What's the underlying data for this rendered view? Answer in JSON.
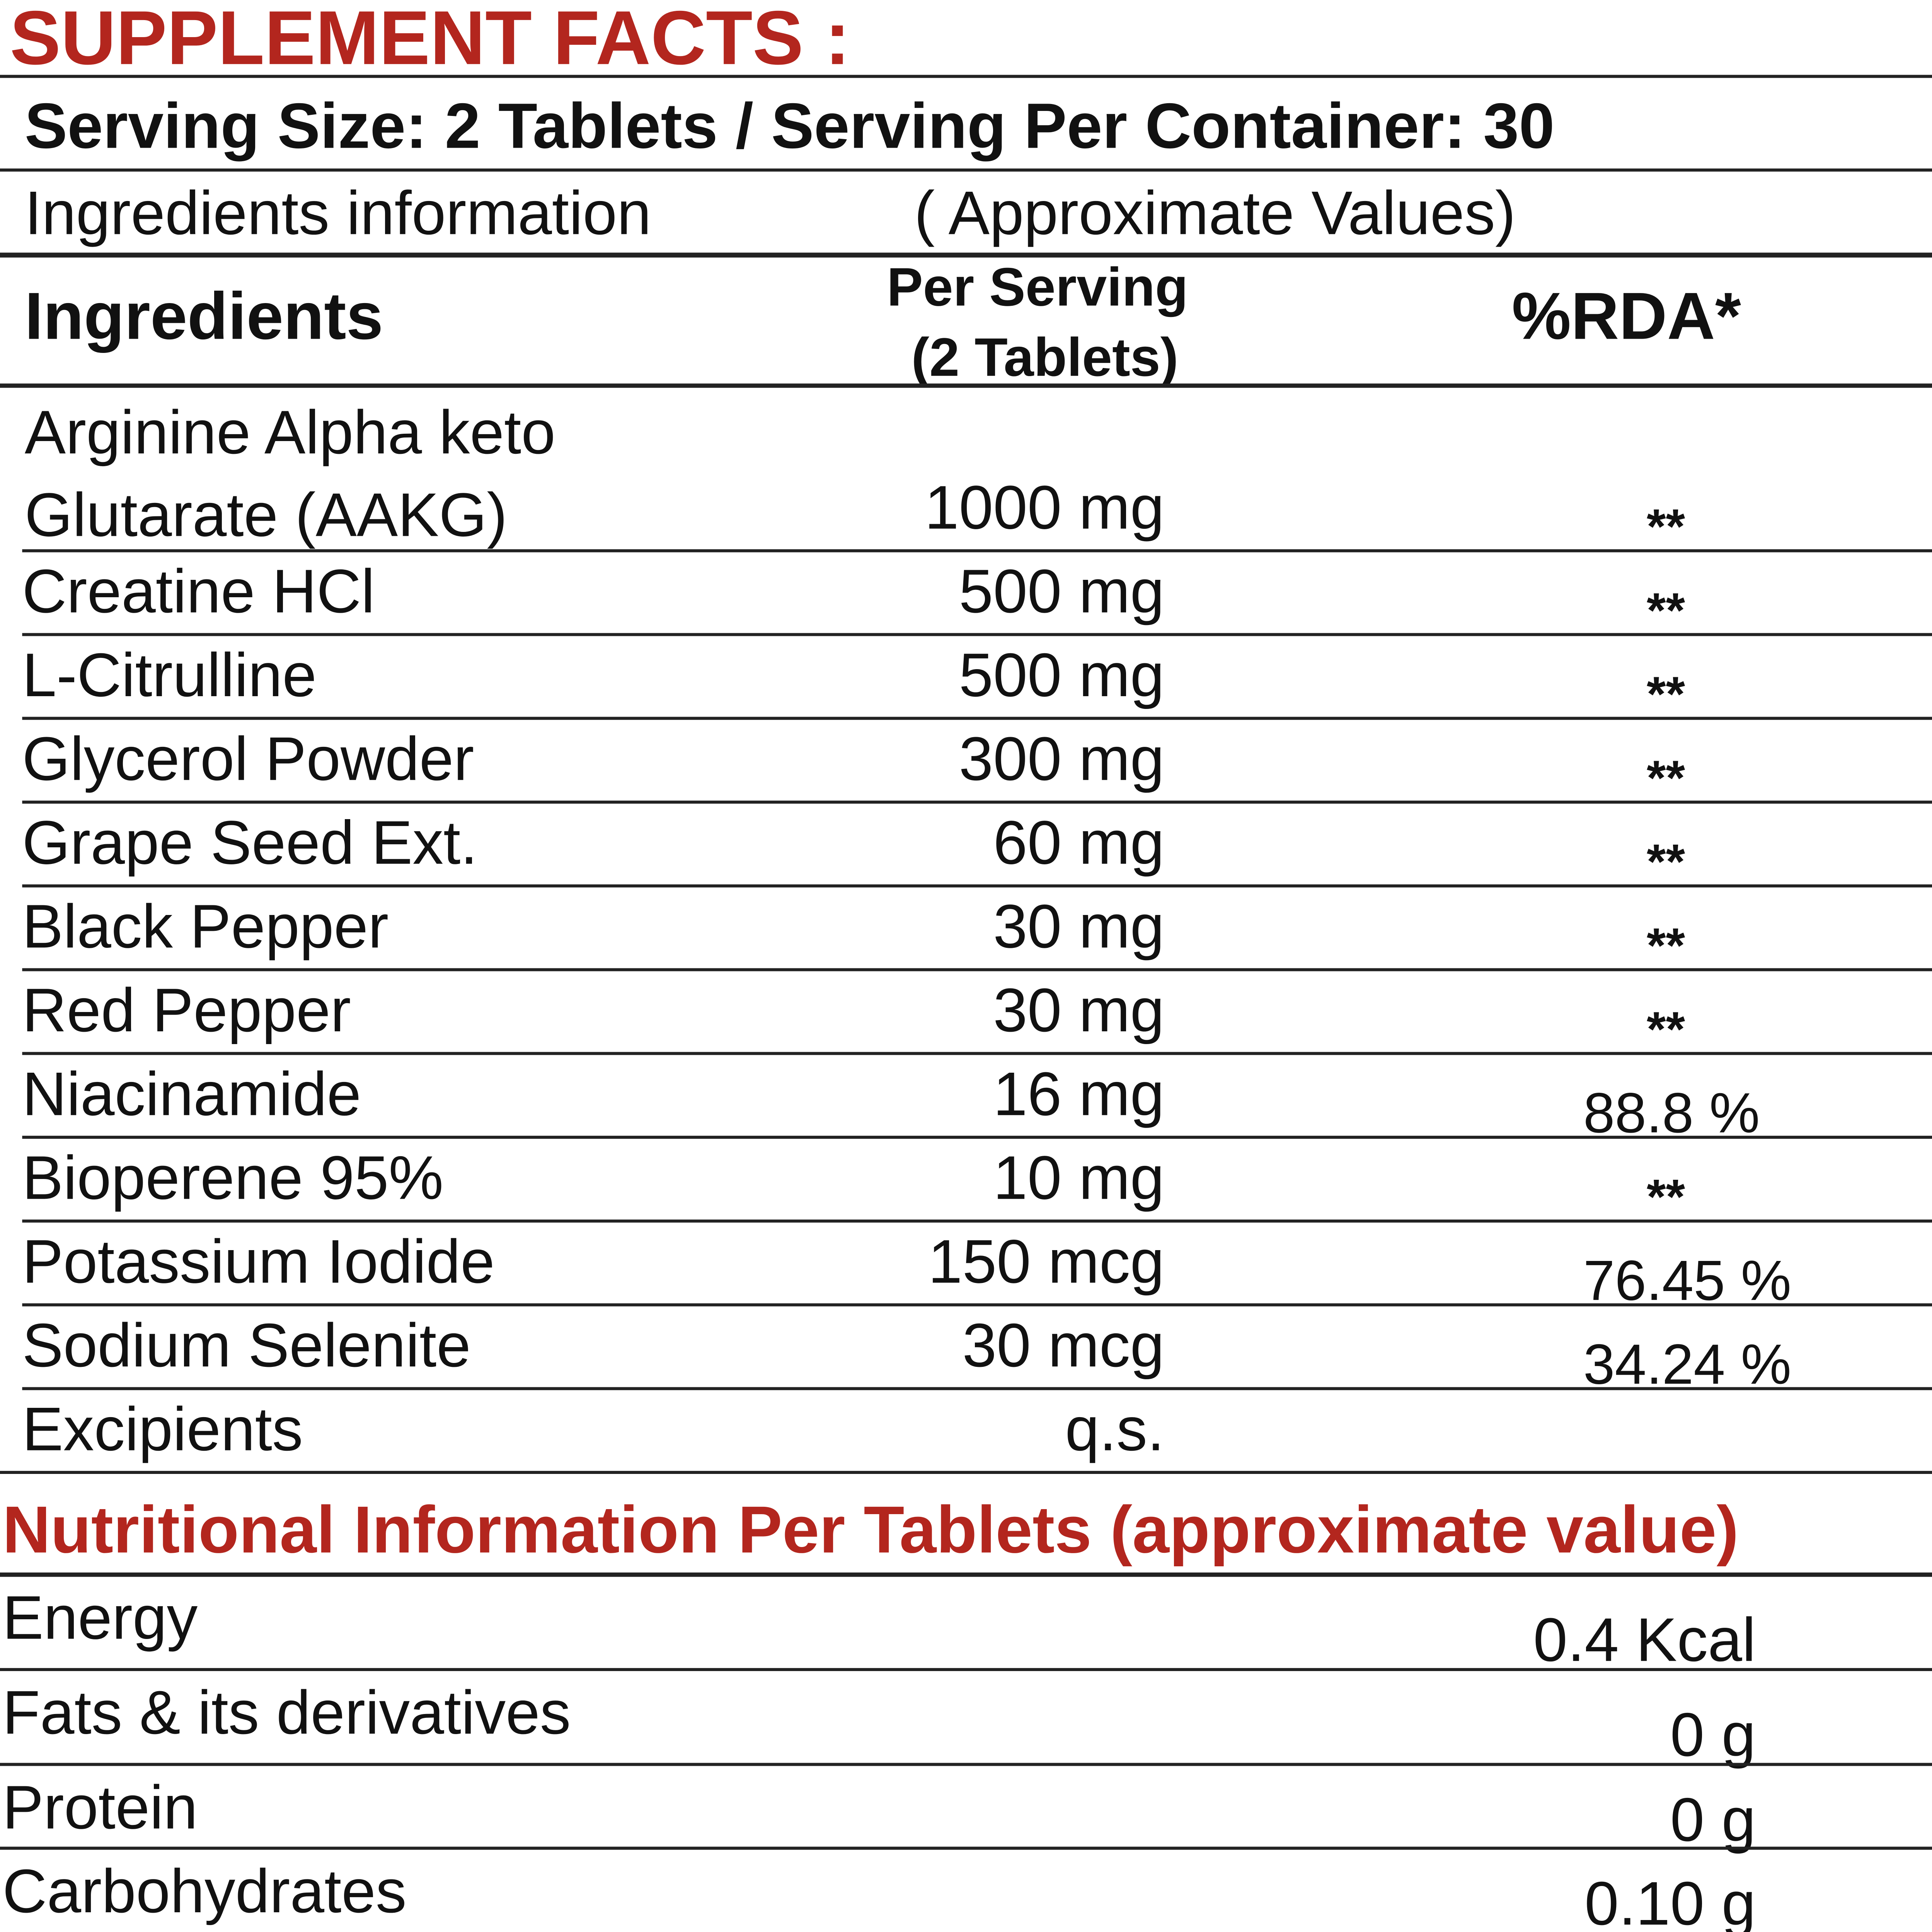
{
  "title": "SUPPLEMENT FACTS :",
  "serving": "Serving Size: 2 Tablets / Serving Per Container: 30",
  "info": {
    "left": "Ingredients information",
    "right": "( Approximate Values)"
  },
  "table": {
    "header": {
      "ingredients": "Ingredients",
      "per_serving": [
        "Per Serving",
        "(2 Tablets)"
      ],
      "rda": "%RDA*"
    },
    "rows": [
      {
        "name": [
          "Arginine Alpha keto",
          "Glutarate (AAKG)"
        ],
        "amount": "1000 mg",
        "rda": "**"
      },
      {
        "name": "Creatine HCl",
        "amount": "500 mg",
        "rda": "**"
      },
      {
        "name": "L-Citrulline",
        "amount": "500 mg",
        "rda": "**"
      },
      {
        "name": "Glycerol Powder",
        "amount": "300 mg",
        "rda": "**"
      },
      {
        "name": "Grape Seed Ext.",
        "amount": "60 mg",
        "rda": "**"
      },
      {
        "name": "Black Pepper",
        "amount": "30 mg",
        "rda": "**"
      },
      {
        "name": "Red Pepper",
        "amount": "30 mg",
        "rda": "**"
      },
      {
        "name": "Niacinamide",
        "amount": "16 mg",
        "rda": "88.8 %"
      },
      {
        "name": "Bioperene 95%",
        "amount": "10 mg",
        "rda": "**"
      },
      {
        "name": "Potassium Iodide",
        "amount": "150 mcg",
        "rda": "76.45 %"
      },
      {
        "name": "Sodium Selenite",
        "amount": "30 mcg",
        "rda": "34.24 %"
      },
      {
        "name": "Excipients",
        "amount": "q.s."
      }
    ]
  },
  "nutrition": {
    "title": "Nutritional Information Per Tablets (approximate value)",
    "rows": [
      {
        "name": "Energy",
        "value": "0.4 Kcal"
      },
      {
        "name": "Fats & its derivatives",
        "value": "0 g"
      },
      {
        "name": "Protein",
        "value": "0 g"
      },
      {
        "name": "Carbohydrates",
        "value": "0.10 g"
      }
    ]
  }
}
